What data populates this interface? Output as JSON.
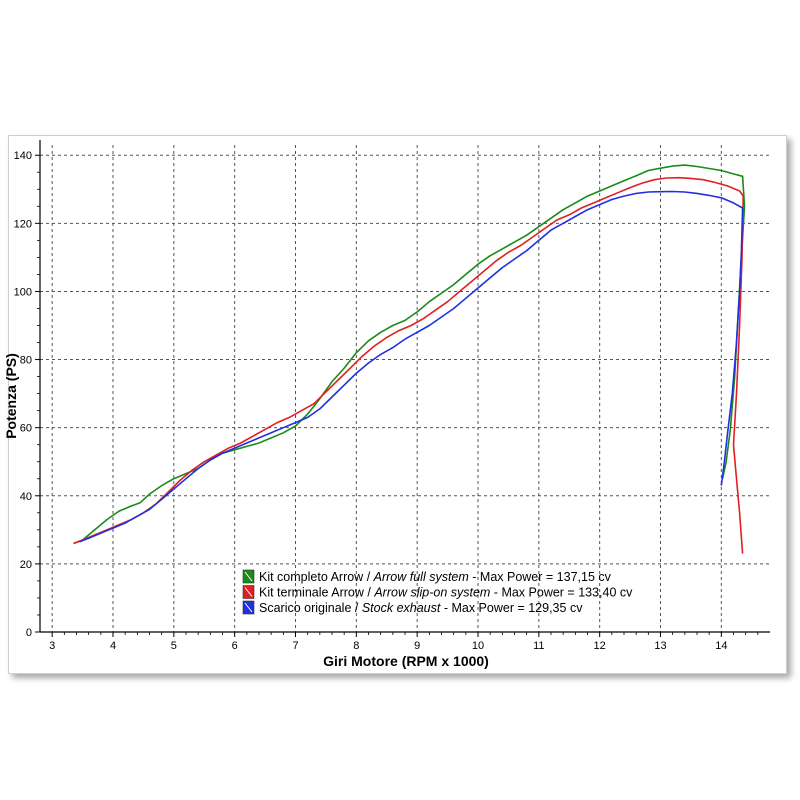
{
  "chart_data": {
    "type": "line",
    "title": "",
    "xlabel": "Giri Motore (RPM x 1000)",
    "ylabel": "Potenza (PS)",
    "xlim": [
      2.8,
      14.8
    ],
    "ylim": [
      0,
      143
    ],
    "x_ticks": [
      "3",
      "4",
      "5",
      "6",
      "7",
      "8",
      "9",
      "10",
      "11",
      "12",
      "13",
      "14"
    ],
    "y_ticks": [
      "0",
      "20",
      "40",
      "60",
      "80",
      "100",
      "120",
      "140"
    ],
    "grid": true,
    "legend_position": "bottom-center",
    "series": [
      {
        "name": "Kit completo Arrow",
        "name_en": "Arrow full system",
        "max_label": "Max Power = 137,15 cv",
        "color": "#1a8a1a",
        "points": [
          [
            3.35,
            26
          ],
          [
            3.5,
            27
          ],
          [
            3.7,
            30
          ],
          [
            3.9,
            33
          ],
          [
            4.1,
            35.5
          ],
          [
            4.3,
            37
          ],
          [
            4.45,
            38
          ],
          [
            4.6,
            40.5
          ],
          [
            4.8,
            43
          ],
          [
            5.0,
            45
          ],
          [
            5.2,
            46.5
          ],
          [
            5.4,
            48
          ],
          [
            5.6,
            50.5
          ],
          [
            5.8,
            52.5
          ],
          [
            6.0,
            53.5
          ],
          [
            6.2,
            54.5
          ],
          [
            6.4,
            55.5
          ],
          [
            6.6,
            57
          ],
          [
            6.8,
            58.5
          ],
          [
            7.0,
            60.5
          ],
          [
            7.2,
            64
          ],
          [
            7.4,
            68.5
          ],
          [
            7.6,
            73.5
          ],
          [
            7.8,
            77.5
          ],
          [
            8.0,
            82
          ],
          [
            8.2,
            85.5
          ],
          [
            8.4,
            88
          ],
          [
            8.6,
            90
          ],
          [
            8.8,
            91.5
          ],
          [
            9.0,
            94
          ],
          [
            9.2,
            97
          ],
          [
            9.4,
            99.5
          ],
          [
            9.6,
            102
          ],
          [
            9.8,
            105
          ],
          [
            10.0,
            108
          ],
          [
            10.2,
            110.5
          ],
          [
            10.4,
            112.5
          ],
          [
            10.6,
            114.5
          ],
          [
            10.8,
            116.5
          ],
          [
            11.0,
            119
          ],
          [
            11.2,
            121.5
          ],
          [
            11.4,
            124
          ],
          [
            11.6,
            126
          ],
          [
            11.8,
            128
          ],
          [
            12.0,
            129.5
          ],
          [
            12.2,
            131
          ],
          [
            12.4,
            132.5
          ],
          [
            12.6,
            134
          ],
          [
            12.8,
            135.5
          ],
          [
            13.0,
            136.2
          ],
          [
            13.2,
            136.8
          ],
          [
            13.4,
            137.1
          ],
          [
            13.6,
            136.7
          ],
          [
            13.8,
            136.1
          ],
          [
            14.0,
            135.5
          ],
          [
            14.2,
            134.5
          ],
          [
            14.35,
            133.8
          ],
          [
            14.38,
            125
          ],
          [
            14.33,
            110
          ],
          [
            14.28,
            95
          ],
          [
            14.22,
            75
          ],
          [
            14.15,
            60
          ],
          [
            14.08,
            50
          ],
          [
            14.02,
            45
          ]
        ]
      },
      {
        "name": "Kit terminale Arrow",
        "name_en": "Arrow slip-on system",
        "max_label": "Max Power = 133,40 cv",
        "color": "#e02020",
        "points": [
          [
            3.35,
            26
          ],
          [
            3.5,
            27
          ],
          [
            3.7,
            28.5
          ],
          [
            3.9,
            30
          ],
          [
            4.1,
            31.5
          ],
          [
            4.3,
            33
          ],
          [
            4.5,
            35
          ],
          [
            4.7,
            37.5
          ],
          [
            4.9,
            41
          ],
          [
            5.1,
            44.5
          ],
          [
            5.3,
            47.5
          ],
          [
            5.5,
            50
          ],
          [
            5.7,
            52
          ],
          [
            5.9,
            54
          ],
          [
            6.1,
            55.5
          ],
          [
            6.3,
            57.5
          ],
          [
            6.5,
            59.5
          ],
          [
            6.7,
            61.5
          ],
          [
            6.9,
            63
          ],
          [
            7.1,
            65
          ],
          [
            7.3,
            67
          ],
          [
            7.5,
            70.5
          ],
          [
            7.7,
            74
          ],
          [
            7.9,
            77.5
          ],
          [
            8.1,
            81
          ],
          [
            8.3,
            84
          ],
          [
            8.5,
            86.5
          ],
          [
            8.7,
            88.5
          ],
          [
            8.9,
            90
          ],
          [
            9.1,
            92
          ],
          [
            9.3,
            94.5
          ],
          [
            9.5,
            97
          ],
          [
            9.7,
            100
          ],
          [
            9.9,
            103
          ],
          [
            10.1,
            106
          ],
          [
            10.3,
            109
          ],
          [
            10.5,
            111.5
          ],
          [
            10.7,
            113.5
          ],
          [
            10.9,
            116
          ],
          [
            11.1,
            118.5
          ],
          [
            11.3,
            121
          ],
          [
            11.5,
            122.5
          ],
          [
            11.7,
            124.5
          ],
          [
            11.9,
            126
          ],
          [
            12.1,
            127.5
          ],
          [
            12.3,
            129
          ],
          [
            12.5,
            130.5
          ],
          [
            12.7,
            131.8
          ],
          [
            12.9,
            132.8
          ],
          [
            13.1,
            133.3
          ],
          [
            13.3,
            133.4
          ],
          [
            13.5,
            133.2
          ],
          [
            13.7,
            132.8
          ],
          [
            13.9,
            132
          ],
          [
            14.1,
            131
          ],
          [
            14.3,
            129.5
          ],
          [
            14.36,
            128
          ],
          [
            14.34,
            110
          ],
          [
            14.3,
            90
          ],
          [
            14.25,
            70
          ],
          [
            14.2,
            55
          ],
          [
            14.25,
            45
          ],
          [
            14.3,
            35
          ],
          [
            14.35,
            23
          ]
        ]
      },
      {
        "name": "Scarico originale",
        "name_en": "Stock exhaust",
        "max_label": "Max Power = 129,35 cv",
        "color": "#2030e0",
        "points": [
          [
            3.45,
            26.5
          ],
          [
            3.6,
            27.5
          ],
          [
            3.8,
            29
          ],
          [
            4.0,
            30.5
          ],
          [
            4.2,
            32
          ],
          [
            4.4,
            34
          ],
          [
            4.6,
            36
          ],
          [
            4.8,
            39
          ],
          [
            5.0,
            42
          ],
          [
            5.2,
            45
          ],
          [
            5.4,
            48
          ],
          [
            5.6,
            50.5
          ],
          [
            5.8,
            52.5
          ],
          [
            6.0,
            54
          ],
          [
            6.2,
            55.5
          ],
          [
            6.4,
            57
          ],
          [
            6.6,
            58.5
          ],
          [
            6.8,
            60
          ],
          [
            7.0,
            61.5
          ],
          [
            7.2,
            63
          ],
          [
            7.4,
            65.5
          ],
          [
            7.6,
            69
          ],
          [
            7.8,
            72.5
          ],
          [
            8.0,
            76
          ],
          [
            8.2,
            79
          ],
          [
            8.4,
            81.5
          ],
          [
            8.6,
            83.5
          ],
          [
            8.8,
            86
          ],
          [
            9.0,
            88
          ],
          [
            9.2,
            90
          ],
          [
            9.4,
            92.5
          ],
          [
            9.6,
            95
          ],
          [
            9.8,
            98
          ],
          [
            10.0,
            101
          ],
          [
            10.2,
            104
          ],
          [
            10.4,
            107
          ],
          [
            10.6,
            109.5
          ],
          [
            10.8,
            112
          ],
          [
            11.0,
            115
          ],
          [
            11.2,
            118
          ],
          [
            11.4,
            120
          ],
          [
            11.6,
            122
          ],
          [
            11.8,
            124
          ],
          [
            12.0,
            125.5
          ],
          [
            12.2,
            127
          ],
          [
            12.4,
            128
          ],
          [
            12.6,
            128.8
          ],
          [
            12.8,
            129.2
          ],
          [
            13.0,
            129.3
          ],
          [
            13.2,
            129.35
          ],
          [
            13.4,
            129.2
          ],
          [
            13.6,
            128.8
          ],
          [
            13.8,
            128.2
          ],
          [
            14.0,
            127.5
          ],
          [
            14.2,
            126
          ],
          [
            14.35,
            124.5
          ],
          [
            14.33,
            112
          ],
          [
            14.3,
            100
          ],
          [
            14.25,
            85
          ],
          [
            14.18,
            70
          ],
          [
            14.1,
            58
          ],
          [
            14.05,
            50
          ],
          [
            14.0,
            43
          ]
        ]
      }
    ]
  }
}
